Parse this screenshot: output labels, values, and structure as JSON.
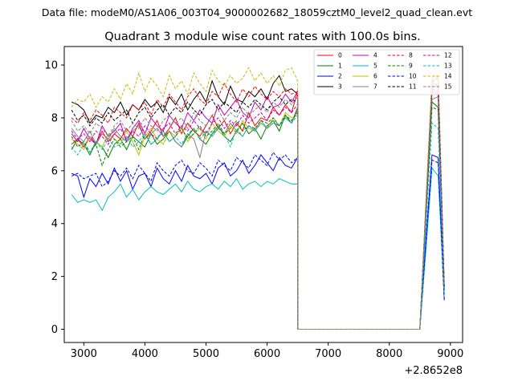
{
  "chart_data": {
    "type": "line",
    "suptitle": "Data file: modeM0/AS1A06_003T04_9000002682_18059cztM0_level2_quad_clean.evt",
    "title": "Quadrant 3 module wise count rates with 100.0s bins.",
    "xlabel": "",
    "ylabel": "",
    "x_offset_label": "+2.8652e8",
    "xlim": [
      2680,
      9200
    ],
    "ylim": [
      -0.5,
      10.7
    ],
    "xticks": [
      3000,
      4000,
      5000,
      6000,
      7000,
      8000,
      9000
    ],
    "yticks": [
      0,
      2,
      4,
      6,
      8,
      10
    ],
    "legend": [
      "0",
      "1",
      "2",
      "3",
      "4",
      "5",
      "6",
      "7",
      "8",
      "9",
      "10",
      "11",
      "12",
      "13",
      "14",
      "15"
    ],
    "colors": [
      "#ff0000",
      "#008000",
      "#0000ff",
      "#000000",
      "#c000c0",
      "#00bfbf",
      "#bfbf00",
      "#808080",
      "#ff0000",
      "#008000",
      "#0000ff",
      "#000000",
      "#c000c0",
      "#00bfbf",
      "#bfbf00",
      "#808080"
    ],
    "x_start": 2800,
    "x_step": 100,
    "gap": {
      "drop_at": 6500,
      "resume_at": 8500,
      "value": 0
    },
    "series": [
      {
        "name": "0",
        "values": [
          7.0,
          7.2,
          6.9,
          7.3,
          7.0,
          7.5,
          7.1,
          7.4,
          7.2,
          7.6,
          7.3,
          7.8,
          7.2,
          7.5,
          7.9,
          7.3,
          7.6,
          8.0,
          7.4,
          7.8,
          7.5,
          7.3,
          7.7,
          8.1,
          7.6,
          7.9,
          7.4,
          7.8,
          7.5,
          8.2,
          7.7,
          8.0,
          7.9,
          8.4,
          8.1,
          8.5,
          8.2,
          9.0
        ]
      },
      {
        "name": "1",
        "values": [
          6.8,
          7.2,
          7.0,
          6.6,
          7.1,
          6.9,
          6.5,
          7.0,
          7.2,
          6.8,
          7.3,
          7.1,
          6.9,
          7.4,
          7.0,
          7.2,
          7.5,
          7.1,
          6.9,
          7.3,
          7.6,
          7.2,
          7.0,
          7.4,
          7.7,
          7.3,
          7.1,
          7.5,
          7.8,
          7.4,
          7.6,
          7.2,
          7.7,
          7.9,
          7.5,
          8.1,
          7.8,
          8.4
        ]
      },
      {
        "name": "2",
        "values": [
          5.9,
          5.8,
          5.0,
          5.7,
          5.4,
          5.9,
          5.5,
          6.1,
          5.6,
          6.0,
          5.3,
          5.8,
          5.9,
          5.4,
          6.1,
          5.7,
          5.5,
          6.0,
          5.6,
          6.2,
          5.8,
          5.7,
          5.9,
          5.5,
          6.1,
          6.3,
          5.8,
          6.0,
          6.4,
          5.9,
          6.2,
          6.6,
          6.3,
          6.0,
          6.5,
          6.2,
          6.1,
          6.5
        ]
      },
      {
        "name": "3",
        "values": [
          8.6,
          8.5,
          8.3,
          7.8,
          8.1,
          8.0,
          8.4,
          8.2,
          8.6,
          8.1,
          8.5,
          8.3,
          8.7,
          8.4,
          8.6,
          8.2,
          8.8,
          8.5,
          8.9,
          8.3,
          8.7,
          9.0,
          8.6,
          9.4,
          8.8,
          8.5,
          9.2,
          8.7,
          8.6,
          9.0,
          8.8,
          9.1,
          8.7,
          9.3,
          9.6,
          9.0,
          9.1,
          8.9
        ]
      },
      {
        "name": "4",
        "values": [
          7.4,
          7.1,
          7.6,
          7.2,
          7.0,
          7.7,
          7.3,
          7.5,
          7.8,
          7.1,
          7.6,
          7.9,
          7.4,
          8.0,
          7.7,
          7.5,
          8.1,
          7.8,
          7.6,
          8.2,
          7.9,
          8.3,
          8.0,
          7.8,
          8.5,
          8.1,
          8.4,
          8.7,
          8.2,
          8.0,
          8.6,
          8.3,
          8.8,
          8.4,
          8.5,
          8.9,
          8.6,
          9.0
        ]
      },
      {
        "name": "5",
        "values": [
          5.1,
          4.8,
          4.9,
          4.8,
          4.9,
          4.5,
          5.0,
          5.2,
          5.5,
          5.0,
          5.3,
          4.9,
          5.2,
          5.4,
          5.2,
          5.1,
          5.3,
          5.5,
          5.2,
          5.6,
          5.3,
          5.2,
          5.4,
          5.5,
          5.3,
          5.6,
          5.4,
          5.7,
          5.3,
          5.5,
          5.6,
          5.4,
          5.6,
          5.5,
          5.7,
          5.6,
          5.5,
          5.5
        ]
      },
      {
        "name": "6",
        "values": [
          7.2,
          7.0,
          6.8,
          7.3,
          7.1,
          6.9,
          7.4,
          7.2,
          7.0,
          7.5,
          7.1,
          6.6,
          7.3,
          7.6,
          7.2,
          7.0,
          7.5,
          7.3,
          7.7,
          7.1,
          7.4,
          7.6,
          7.2,
          7.8,
          7.5,
          7.3,
          7.7,
          7.4,
          7.9,
          7.6,
          7.5,
          7.8,
          7.6,
          8.0,
          7.7,
          8.2,
          8.0,
          8.1
        ]
      },
      {
        "name": "7",
        "values": [
          7.6,
          7.3,
          7.1,
          7.5,
          7.0,
          7.4,
          7.2,
          7.6,
          7.3,
          7.1,
          7.5,
          7.7,
          7.2,
          7.4,
          7.6,
          7.3,
          7.5,
          7.1,
          6.9,
          7.4,
          7.2,
          6.5,
          7.5,
          7.3,
          7.6,
          7.4,
          7.8,
          7.5,
          7.3,
          7.7,
          7.5,
          7.9,
          7.6,
          7.8,
          7.7,
          8.0,
          7.8,
          8.3
        ]
      },
      {
        "name": "8",
        "values": [
          8.0,
          7.8,
          8.2,
          7.9,
          8.3,
          8.1,
          7.8,
          8.4,
          8.2,
          8.0,
          8.5,
          8.3,
          8.6,
          8.1,
          8.7,
          8.4,
          8.9,
          8.6,
          8.3,
          8.8,
          9.1,
          8.7,
          8.5,
          9.0,
          8.8,
          9.3,
          8.9,
          8.6,
          9.1,
          8.8,
          9.2,
          8.9,
          8.7,
          9.0,
          8.8,
          9.1,
          8.9,
          9.0
        ]
      },
      {
        "name": "9",
        "values": [
          7.3,
          6.9,
          7.1,
          6.7,
          7.0,
          6.2,
          6.8,
          7.2,
          6.9,
          7.1,
          7.3,
          6.8,
          7.4,
          7.0,
          7.2,
          7.5,
          7.1,
          7.3,
          7.6,
          7.2,
          7.4,
          7.7,
          7.3,
          7.5,
          7.8,
          7.4,
          7.6,
          7.9,
          7.5,
          7.7,
          7.6,
          7.9,
          7.8,
          8.0,
          7.7,
          8.1,
          7.9,
          8.2
        ]
      },
      {
        "name": "10",
        "values": [
          5.8,
          5.9,
          5.7,
          5.8,
          5.9,
          5.4,
          5.6,
          6.0,
          5.8,
          6.1,
          5.7,
          6.2,
          5.9,
          5.6,
          6.3,
          6.0,
          5.8,
          6.2,
          6.4,
          6.0,
          5.9,
          6.3,
          6.1,
          5.8,
          6.4,
          6.2,
          6.0,
          6.5,
          6.3,
          6.1,
          6.6,
          6.4,
          6.2,
          6.7,
          6.4,
          6.6,
          6.3,
          6.5
        ]
      },
      {
        "name": "11",
        "values": [
          8.3,
          7.9,
          8.1,
          7.7,
          8.0,
          7.8,
          8.2,
          7.9,
          8.1,
          8.3,
          7.8,
          8.2,
          8.4,
          8.0,
          8.3,
          8.5,
          8.1,
          8.4,
          8.2,
          8.6,
          8.3,
          8.1,
          8.5,
          8.7,
          8.3,
          8.6,
          8.4,
          8.2,
          8.6,
          8.4,
          8.7,
          8.5,
          8.3,
          8.6,
          8.8,
          8.5,
          8.7,
          8.6
        ]
      },
      {
        "name": "12",
        "values": [
          7.5,
          7.2,
          7.4,
          7.1,
          7.5,
          7.3,
          7.0,
          7.4,
          7.6,
          7.2,
          7.5,
          7.3,
          7.7,
          7.4,
          7.2,
          7.6,
          7.8,
          7.4,
          7.7,
          7.5,
          7.9,
          7.6,
          7.4,
          7.8,
          8.0,
          7.6,
          7.9,
          7.7,
          8.1,
          7.8,
          8.0,
          8.2,
          7.9,
          8.3,
          8.1,
          8.4,
          8.2,
          8.5
        ]
      },
      {
        "name": "13",
        "values": [
          6.9,
          6.6,
          7.0,
          6.7,
          7.1,
          6.8,
          7.2,
          6.9,
          7.0,
          7.3,
          6.9,
          7.1,
          7.4,
          7.0,
          7.2,
          7.5,
          7.1,
          7.3,
          7.0,
          7.4,
          7.6,
          7.2,
          7.5,
          7.3,
          7.7,
          7.4,
          6.9,
          7.6,
          7.3,
          7.7,
          7.5,
          7.8,
          7.6,
          7.9,
          7.7,
          8.0,
          7.8,
          8.1
        ]
      },
      {
        "name": "14",
        "values": [
          8.4,
          8.7,
          8.6,
          8.9,
          8.4,
          8.8,
          8.6,
          9.1,
          8.7,
          9.3,
          8.9,
          9.7,
          9.0,
          9.5,
          9.2,
          8.8,
          9.6,
          9.1,
          9.4,
          8.9,
          9.7,
          9.3,
          9.0,
          9.8,
          9.4,
          9.2,
          9.6,
          9.3,
          9.5,
          9.9,
          9.4,
          9.7,
          9.3,
          9.6,
          9.2,
          9.8,
          9.9,
          9.4
        ]
      },
      {
        "name": "15",
        "values": [
          7.9,
          7.5,
          7.7,
          7.4,
          7.8,
          7.6,
          7.3,
          7.7,
          7.9,
          7.5,
          7.8,
          7.6,
          8.0,
          7.7,
          7.5,
          7.9,
          8.1,
          7.8,
          8.0,
          7.6,
          8.2,
          7.9,
          7.7,
          8.1,
          8.3,
          7.9,
          8.2,
          8.0,
          8.4,
          8.1,
          8.3,
          8.5,
          8.2,
          8.6,
          8.4,
          8.7,
          8.5,
          8.8
        ]
      }
    ],
    "tail": {
      "x": [
        8500,
        8600,
        8700,
        8800,
        8900
      ],
      "values": [
        [
          0,
          4.6,
          9.3,
          9.2,
          1.6
        ],
        [
          0,
          4.4,
          8.6,
          8.4,
          1.5
        ],
        [
          0,
          3.4,
          6.6,
          6.5,
          1.1
        ],
        [
          0,
          4.7,
          9.4,
          9.5,
          1.6
        ],
        [
          0,
          4.5,
          9.0,
          8.9,
          1.5
        ],
        [
          0,
          3.0,
          6.1,
          5.8,
          1.2
        ],
        [
          0,
          4.7,
          9.3,
          9.6,
          1.6
        ],
        [
          0,
          4.4,
          8.7,
          8.8,
          1.5
        ],
        [
          0,
          4.8,
          9.5,
          9.6,
          1.7
        ],
        [
          0,
          4.3,
          8.4,
          8.3,
          1.5
        ],
        [
          0,
          3.3,
          6.4,
          6.3,
          1.1
        ],
        [
          0,
          4.6,
          9.1,
          9.0,
          1.6
        ],
        [
          0,
          4.6,
          9.4,
          9.2,
          1.6
        ],
        [
          0,
          3.9,
          7.8,
          7.6,
          1.4
        ],
        [
          0,
          4.9,
          9.6,
          9.7,
          1.8
        ],
        [
          0,
          4.6,
          9.2,
          9.3,
          1.6
        ]
      ]
    }
  }
}
